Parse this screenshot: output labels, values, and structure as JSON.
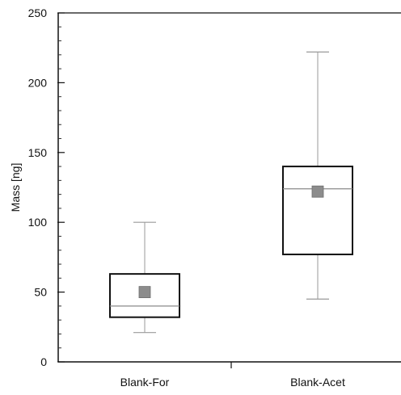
{
  "chart_data": {
    "type": "box",
    "ylabel": "Mass [ng]",
    "ylim": [
      0,
      250
    ],
    "y_ticks": [
      "0",
      "50",
      "100",
      "150",
      "200",
      "250"
    ],
    "y_tick_values": [
      0,
      50,
      100,
      150,
      200,
      250
    ],
    "y_minor_step": 10,
    "categories": [
      "Blank-For",
      "Blank-Acet"
    ],
    "boxes": [
      {
        "category": "Blank-For",
        "whisker_low": 21,
        "q1": 32,
        "median": 40,
        "q3": 63,
        "whisker_high": 100,
        "mean": 50
      },
      {
        "category": "Blank-Acet",
        "whisker_low": 45,
        "q1": 77,
        "median": 124,
        "q3": 140,
        "whisker_high": 222,
        "mean": 122
      }
    ],
    "colors": {
      "box": "#111111",
      "whisker": "#9a9a9a",
      "median": "#8a8a8a",
      "mean_marker": "#8c8c8c"
    },
    "grid": false,
    "legend": "none"
  }
}
